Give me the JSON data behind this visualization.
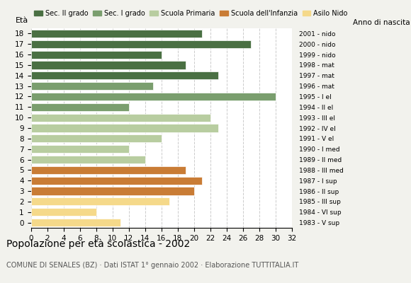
{
  "ages": [
    18,
    17,
    16,
    15,
    14,
    13,
    12,
    11,
    10,
    9,
    8,
    7,
    6,
    5,
    4,
    3,
    2,
    1,
    0
  ],
  "values": [
    21,
    27,
    16,
    19,
    23,
    15,
    30,
    12,
    22,
    23,
    16,
    12,
    14,
    19,
    21,
    20,
    17,
    8,
    11
  ],
  "anno_nascita": [
    "1983 - V sup",
    "1984 - VI sup",
    "1985 - III sup",
    "1986 - II sup",
    "1987 - I sup",
    "1988 - III med",
    "1989 - II med",
    "1990 - I med",
    "1991 - V el",
    "1992 - IV el",
    "1993 - III el",
    "1994 - II el",
    "1995 - I el",
    "1996 - mat",
    "1997 - mat",
    "1998 - mat",
    "1999 - nido",
    "2000 - nido",
    "2001 - nido"
  ],
  "colors": [
    "#4a7043",
    "#4a7043",
    "#4a7043",
    "#4a7043",
    "#4a7043",
    "#7a9e6e",
    "#7a9e6e",
    "#7a9e6e",
    "#b8cda0",
    "#b8cda0",
    "#b8cda0",
    "#b8cda0",
    "#b8cda0",
    "#c97c35",
    "#c97c35",
    "#c97c35",
    "#f5d98a",
    "#f5d98a",
    "#f5d98a"
  ],
  "legend_labels": [
    "Sec. II grado",
    "Sec. I grado",
    "Scuola Primaria",
    "Scuola dell'Infanzia",
    "Asilo Nido"
  ],
  "legend_colors": [
    "#4a7043",
    "#7a9e6e",
    "#b8cda0",
    "#c97c35",
    "#f5d98a"
  ],
  "title": "Popolazione per età scolastica - 2002",
  "subtitle": "COMUNE DI SENALES (BZ) · Dati ISTAT 1° gennaio 2002 · Elaborazione TUTTITALIA.IT",
  "ylabel_eta": "Età",
  "label_anno": "Anno di nascita",
  "xlim": [
    0,
    32
  ],
  "xticks": [
    0,
    2,
    4,
    6,
    8,
    10,
    12,
    14,
    16,
    18,
    20,
    22,
    24,
    26,
    28,
    30,
    32
  ],
  "background_color": "#f2f2ed",
  "bar_background": "#ffffff"
}
